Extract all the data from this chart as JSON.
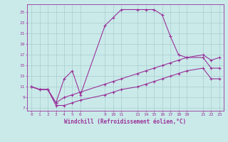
{
  "xlabel": "Windchill (Refroidissement éolien,°C)",
  "bg_color": "#caeaea",
  "line_color": "#993399",
  "grid_color": "#aacccc",
  "line_curve_x": [
    0,
    1,
    2,
    3,
    4,
    5,
    6,
    9,
    10,
    11,
    13,
    14,
    15,
    16,
    17,
    18,
    19,
    21,
    22,
    23
  ],
  "line_curve_y": [
    11.0,
    10.5,
    10.5,
    8.0,
    12.5,
    14.0,
    9.5,
    22.5,
    24.0,
    25.5,
    25.5,
    25.5,
    25.5,
    24.5,
    20.5,
    17.0,
    16.5,
    16.5,
    14.5,
    14.5
  ],
  "line_mid_x": [
    0,
    1,
    2,
    3,
    4,
    5,
    6,
    9,
    10,
    11,
    13,
    14,
    15,
    16,
    17,
    18,
    19,
    21,
    22,
    23
  ],
  "line_mid_y": [
    11.0,
    10.5,
    10.5,
    8.0,
    9.0,
    9.5,
    10.0,
    11.5,
    12.0,
    12.5,
    13.5,
    14.0,
    14.5,
    15.0,
    15.5,
    16.0,
    16.5,
    17.0,
    16.0,
    16.5
  ],
  "line_low_x": [
    0,
    1,
    2,
    3,
    4,
    5,
    6,
    9,
    10,
    11,
    13,
    14,
    15,
    16,
    17,
    18,
    19,
    21,
    22,
    23
  ],
  "line_low_y": [
    11.0,
    10.5,
    10.5,
    7.5,
    7.5,
    8.0,
    8.5,
    9.5,
    10.0,
    10.5,
    11.0,
    11.5,
    12.0,
    12.5,
    13.0,
    13.5,
    14.0,
    14.5,
    12.5,
    12.5
  ],
  "xticks": [
    0,
    1,
    2,
    3,
    4,
    5,
    6,
    9,
    10,
    11,
    13,
    14,
    15,
    16,
    17,
    18,
    19,
    21,
    22,
    23
  ],
  "yticks": [
    7,
    9,
    11,
    13,
    15,
    17,
    19,
    21,
    23,
    25
  ],
  "xlim": [
    -0.5,
    23.5
  ],
  "ylim": [
    6.5,
    26.5
  ]
}
